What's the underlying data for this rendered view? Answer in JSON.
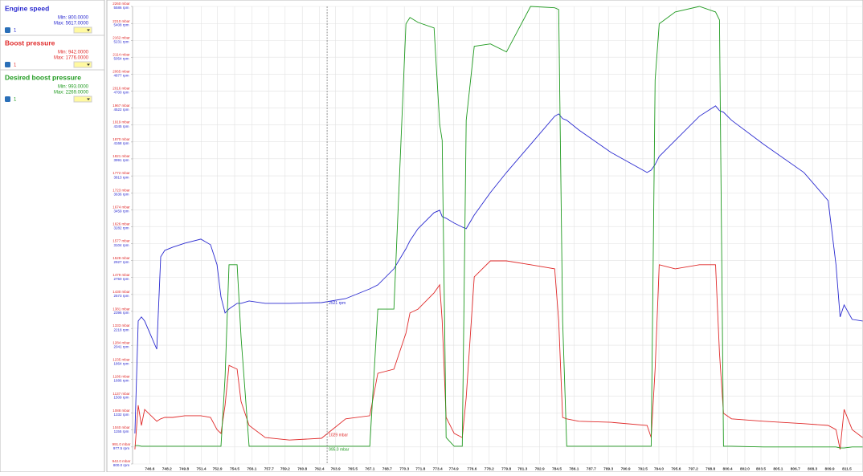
{
  "sidebar": {
    "channels": [
      {
        "min_label": "Min: 800.0000",
        "max_label": "Max: 5617.0000",
        "check_label": "1"
      },
      {
        "min_label": "Min: 942.0000",
        "max_label": "Max: 1776.0000",
        "check_label": "1"
      },
      {
        "min_label": "Min: 993.0000",
        "max_label": "Max: 2269.0000",
        "check_label": "1"
      }
    ]
  },
  "chart_data": {
    "type": "line",
    "x": [
      745.22,
      745.52,
      745.82,
      746.12,
      747.25,
      747.62,
      748.0,
      748.74,
      749.87,
      751.36,
      752.26,
      752.86,
      753.23,
      753.61,
      753.98,
      754.73,
      755.1,
      755.85,
      757.35,
      759.6,
      762.59,
      764.84,
      767.08,
      767.83,
      769.33,
      770.45,
      770.82,
      771.57,
      773.07,
      773.59,
      773.82,
      774.19,
      774.94,
      775.69,
      776.06,
      776.81,
      778.31,
      779.81,
      782.05,
      784.3,
      784.67,
      785.04,
      785.42,
      786.54,
      789.54,
      792.9,
      793.28,
      793.65,
      794.03,
      795.52,
      797.77,
      799.27,
      799.64,
      800.01,
      800.76,
      803.76,
      807.5,
      809.75,
      810.49,
      810.87,
      811.24,
      811.99,
      812.96
    ],
    "series": [
      {
        "name": "Engine speed",
        "color": "#2a2ad0",
        "axis": "y2",
        "values": [
          1119,
          2295,
          2337,
          2295,
          2001,
          2967,
          3034,
          3068,
          3110,
          3152,
          3093,
          2883,
          2547,
          2379,
          2421,
          2480,
          2480,
          2505,
          2480,
          2480,
          2488,
          2530,
          2631,
          2673,
          2841,
          3051,
          3135,
          3261,
          3429,
          3454,
          3387,
          3370,
          3320,
          3278,
          3261,
          3404,
          3639,
          3849,
          4143,
          4437,
          4462,
          4412,
          4395,
          4294,
          4059,
          3849,
          3874,
          3933,
          4017,
          4185,
          4437,
          4546,
          4496,
          4479,
          4395,
          4143,
          3849,
          3555,
          2883,
          2337,
          2463,
          2312,
          2295
        ]
      },
      {
        "name": "Boost pressure",
        "color": "#e02a2a",
        "values": [
          984,
          1111,
          1053,
          1099,
          1065,
          1072,
          1076,
          1076,
          1081,
          1081,
          1076,
          1041,
          1030,
          1111,
          1226,
          1215,
          1122,
          1053,
          1018,
          1011,
          1016,
          1072,
          1081,
          1203,
          1215,
          1319,
          1377,
          1388,
          1435,
          1458,
          1354,
          1076,
          1030,
          1018,
          1134,
          1481,
          1527,
          1527,
          1516,
          1504,
          1354,
          1076,
          1072,
          1065,
          1062,
          1053,
          1018,
          1215,
          1516,
          1504,
          1516,
          1516,
          1261,
          1088,
          1072,
          1065,
          1058,
          1053,
          1041,
          984,
          1099,
          1041,
          1018
        ]
      },
      {
        "name": "Desired boost pressure",
        "color": "#1f9a1f",
        "values": [
          995,
          995,
          993,
          993,
          993,
          993,
          993,
          993,
          993,
          993,
          993,
          993,
          993,
          1192,
          1516,
          1516,
          1307,
          993,
          993,
          993,
          993,
          993,
          993,
          1388,
          1388,
          2210,
          2228,
          2214,
          2198,
          1920,
          1874,
          1018,
          993,
          993,
          1932,
          2145,
          2152,
          2129,
          2260,
          2256,
          2251,
          1354,
          993,
          993,
          993,
          993,
          993,
          2048,
          2210,
          2244,
          2260,
          2244,
          2221,
          993,
          993,
          991,
          991,
          991,
          991,
          988,
          988,
          991,
          991
        ]
      }
    ],
    "xlim": [
      745.0,
      813.0
    ],
    "xticks": [
      746.6,
      748.2,
      749.8,
      751.4,
      752.9,
      754.5,
      756.1,
      757.7,
      759.2,
      760.8,
      762.4,
      763.9,
      765.5,
      767.1,
      768.7,
      770.3,
      771.8,
      773.4,
      774.9,
      776.6,
      778.2,
      779.8,
      781.3,
      782.9,
      784.5,
      786.1,
      787.7,
      789.3,
      790.9,
      792.5,
      {
        "value": 794,
        "label": "794.0"
      },
      795.6,
      797.2,
      798.8,
      800.4,
      {
        "value": 802,
        "label": "802.0"
      },
      803.5,
      805.1,
      806.7,
      808.3,
      809.9,
      811.5
    ],
    "ylim": [
      942,
      2260
    ],
    "yticks": [
      {
        "value": 942,
        "label": "942.0 mbar"
      },
      {
        "value": 991,
        "label": "991.0 mbar"
      },
      {
        "value": 1040,
        "label": "1040 mbar"
      },
      {
        "value": 1088,
        "label": "1088 mbar"
      },
      {
        "value": 1137,
        "label": "1137 mbar"
      },
      {
        "value": 1186,
        "label": "1186 mbar"
      },
      {
        "value": 1235,
        "label": "1235 mbar"
      },
      {
        "value": 1284,
        "label": "1284 mbar"
      },
      {
        "value": 1333,
        "label": "1333 mbar"
      },
      {
        "value": 1381,
        "label": "1381 mbar"
      },
      {
        "value": 1430,
        "label": "1430 mbar"
      },
      {
        "value": 1479,
        "label": "1479 mbar"
      },
      {
        "value": 1528,
        "label": "1528 mbar"
      },
      {
        "value": 1577,
        "label": "1577 mbar"
      },
      {
        "value": 1626,
        "label": "1626 mbar"
      },
      {
        "value": 1674,
        "label": "1674 mbar"
      },
      {
        "value": 1723,
        "label": "1723 mbar"
      },
      {
        "value": 1772,
        "label": "1772 mbar"
      },
      {
        "value": 1821,
        "label": "1821 mbar"
      },
      {
        "value": 1870,
        "label": "1870 mbar"
      },
      {
        "value": 1919,
        "label": "1919 mbar"
      },
      {
        "value": 1967,
        "label": "1967 mbar"
      },
      {
        "value": 2016,
        "label": "2016 mbar"
      },
      {
        "value": 2065,
        "label": "2065 mbar"
      },
      {
        "value": 2114,
        "label": "2114 mbar"
      },
      {
        "value": 2162,
        "label": "2162 mbar"
      },
      {
        "value": 2210,
        "label": "2210 mbar"
      },
      {
        "value": 2260,
        "label": "2260 mbar"
      }
    ],
    "y2lim": [
      800,
      5586
    ],
    "y2ticks": [
      {
        "value": 800,
        "label": "800.0 rpm"
      },
      {
        "value": 977.5,
        "label": "977.5 rpm"
      },
      {
        "value": 1155,
        "label": "1155 rpm"
      },
      {
        "value": 1332,
        "label": "1332 rpm"
      },
      {
        "value": 1509,
        "label": "1509 rpm"
      },
      {
        "value": 1686,
        "label": "1686 rpm"
      },
      {
        "value": 1864,
        "label": "1864 rpm"
      },
      {
        "value": 2041,
        "label": "2041 rpm"
      },
      {
        "value": 2218,
        "label": "2218 rpm"
      },
      {
        "value": 2396,
        "label": "2396 rpm"
      },
      {
        "value": 2573,
        "label": "2573 rpm"
      },
      {
        "value": 2750,
        "label": "2750 rpm"
      },
      {
        "value": 2927,
        "label": "2927 rpm"
      },
      {
        "value": 3104,
        "label": "3104 rpm"
      },
      {
        "value": 3282,
        "label": "3282 rpm"
      },
      {
        "value": 3459,
        "label": "3459 rpm"
      },
      {
        "value": 3636,
        "label": "3636 rpm"
      },
      {
        "value": 3813,
        "label": "3813 rpm"
      },
      {
        "value": 3991,
        "label": "3991 rpm"
      },
      {
        "value": 4168,
        "label": "4168 rpm"
      },
      {
        "value": 4345,
        "label": "4345 rpm"
      },
      {
        "value": 4522,
        "label": "4522 rpm"
      },
      {
        "value": 4700,
        "label": "4700 rpm"
      },
      {
        "value": 4877,
        "label": "4877 rpm"
      },
      {
        "value": 5054,
        "label": "5054 rpm"
      },
      {
        "value": 5231,
        "label": "5231 rpm"
      },
      {
        "value": 5408,
        "label": "5408 rpm"
      },
      {
        "value": 5586,
        "label": "5586 rpm"
      }
    ],
    "grid": true,
    "cursor": {
      "x": 763.11,
      "labels": [
        "2521 rpm",
        "1029 mbar",
        "995.0 mbar"
      ]
    }
  }
}
